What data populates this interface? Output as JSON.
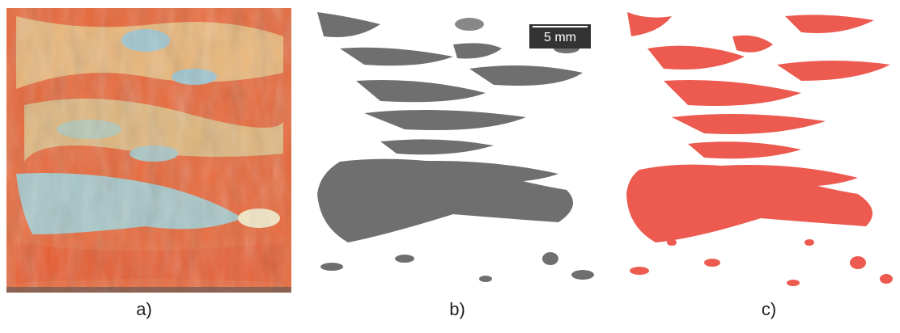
{
  "panels": [
    {
      "label": "a)"
    },
    {
      "label": "b)",
      "scale_bar": "5 mm"
    },
    {
      "label": "c)"
    }
  ]
}
